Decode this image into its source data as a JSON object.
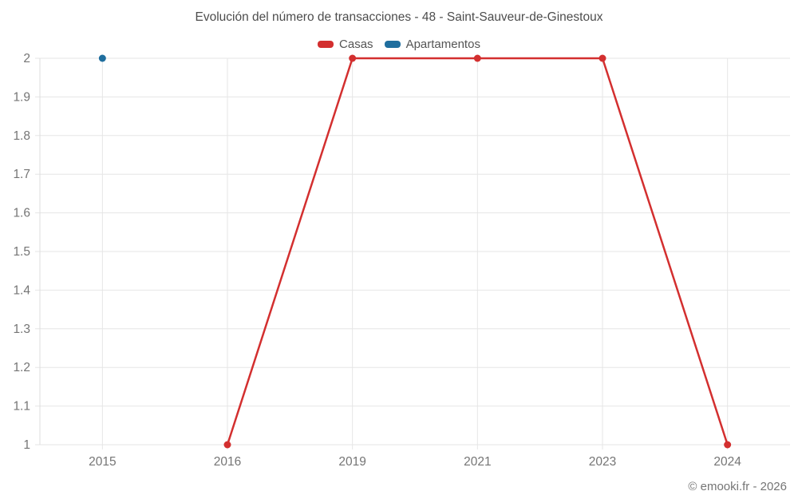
{
  "footer": {
    "copyright": "© emooki.fr - 2026"
  },
  "colors": {
    "background": "#ffffff",
    "grid": "#e6e6e6",
    "axis_line": "#dddddd",
    "axis_label": "#757575",
    "title_text": "#4d4d4d",
    "legend_text": "#555555"
  },
  "chart_data": {
    "type": "line",
    "title": "Evolución del número de transacciones - 48 - Saint-Sauveur-de-Ginestoux",
    "xlabel": "",
    "ylabel": "",
    "categories": [
      "2015",
      "2016",
      "2019",
      "2021",
      "2023",
      "2024"
    ],
    "series": [
      {
        "name": "Casas",
        "color": "#d32f2f",
        "marker_radius": 4.5,
        "line_width": 2.5,
        "values": [
          null,
          1,
          2,
          2,
          2,
          1
        ]
      },
      {
        "name": "Apartamentos",
        "color": "#1f6e9e",
        "marker_radius": 4.5,
        "line_width": 2.5,
        "values": [
          2,
          null,
          null,
          null,
          null,
          null
        ]
      }
    ],
    "ylim": [
      1,
      2
    ],
    "yticks": [
      1,
      1.1,
      1.2,
      1.3,
      1.4,
      1.5,
      1.6,
      1.7,
      1.8,
      1.9,
      2
    ],
    "ytick_labels": [
      "1",
      "1.1",
      "1.2",
      "1.3",
      "1.4",
      "1.5",
      "1.6",
      "1.7",
      "1.8",
      "1.9",
      "2"
    ],
    "grid": true,
    "legend_position": "top"
  }
}
